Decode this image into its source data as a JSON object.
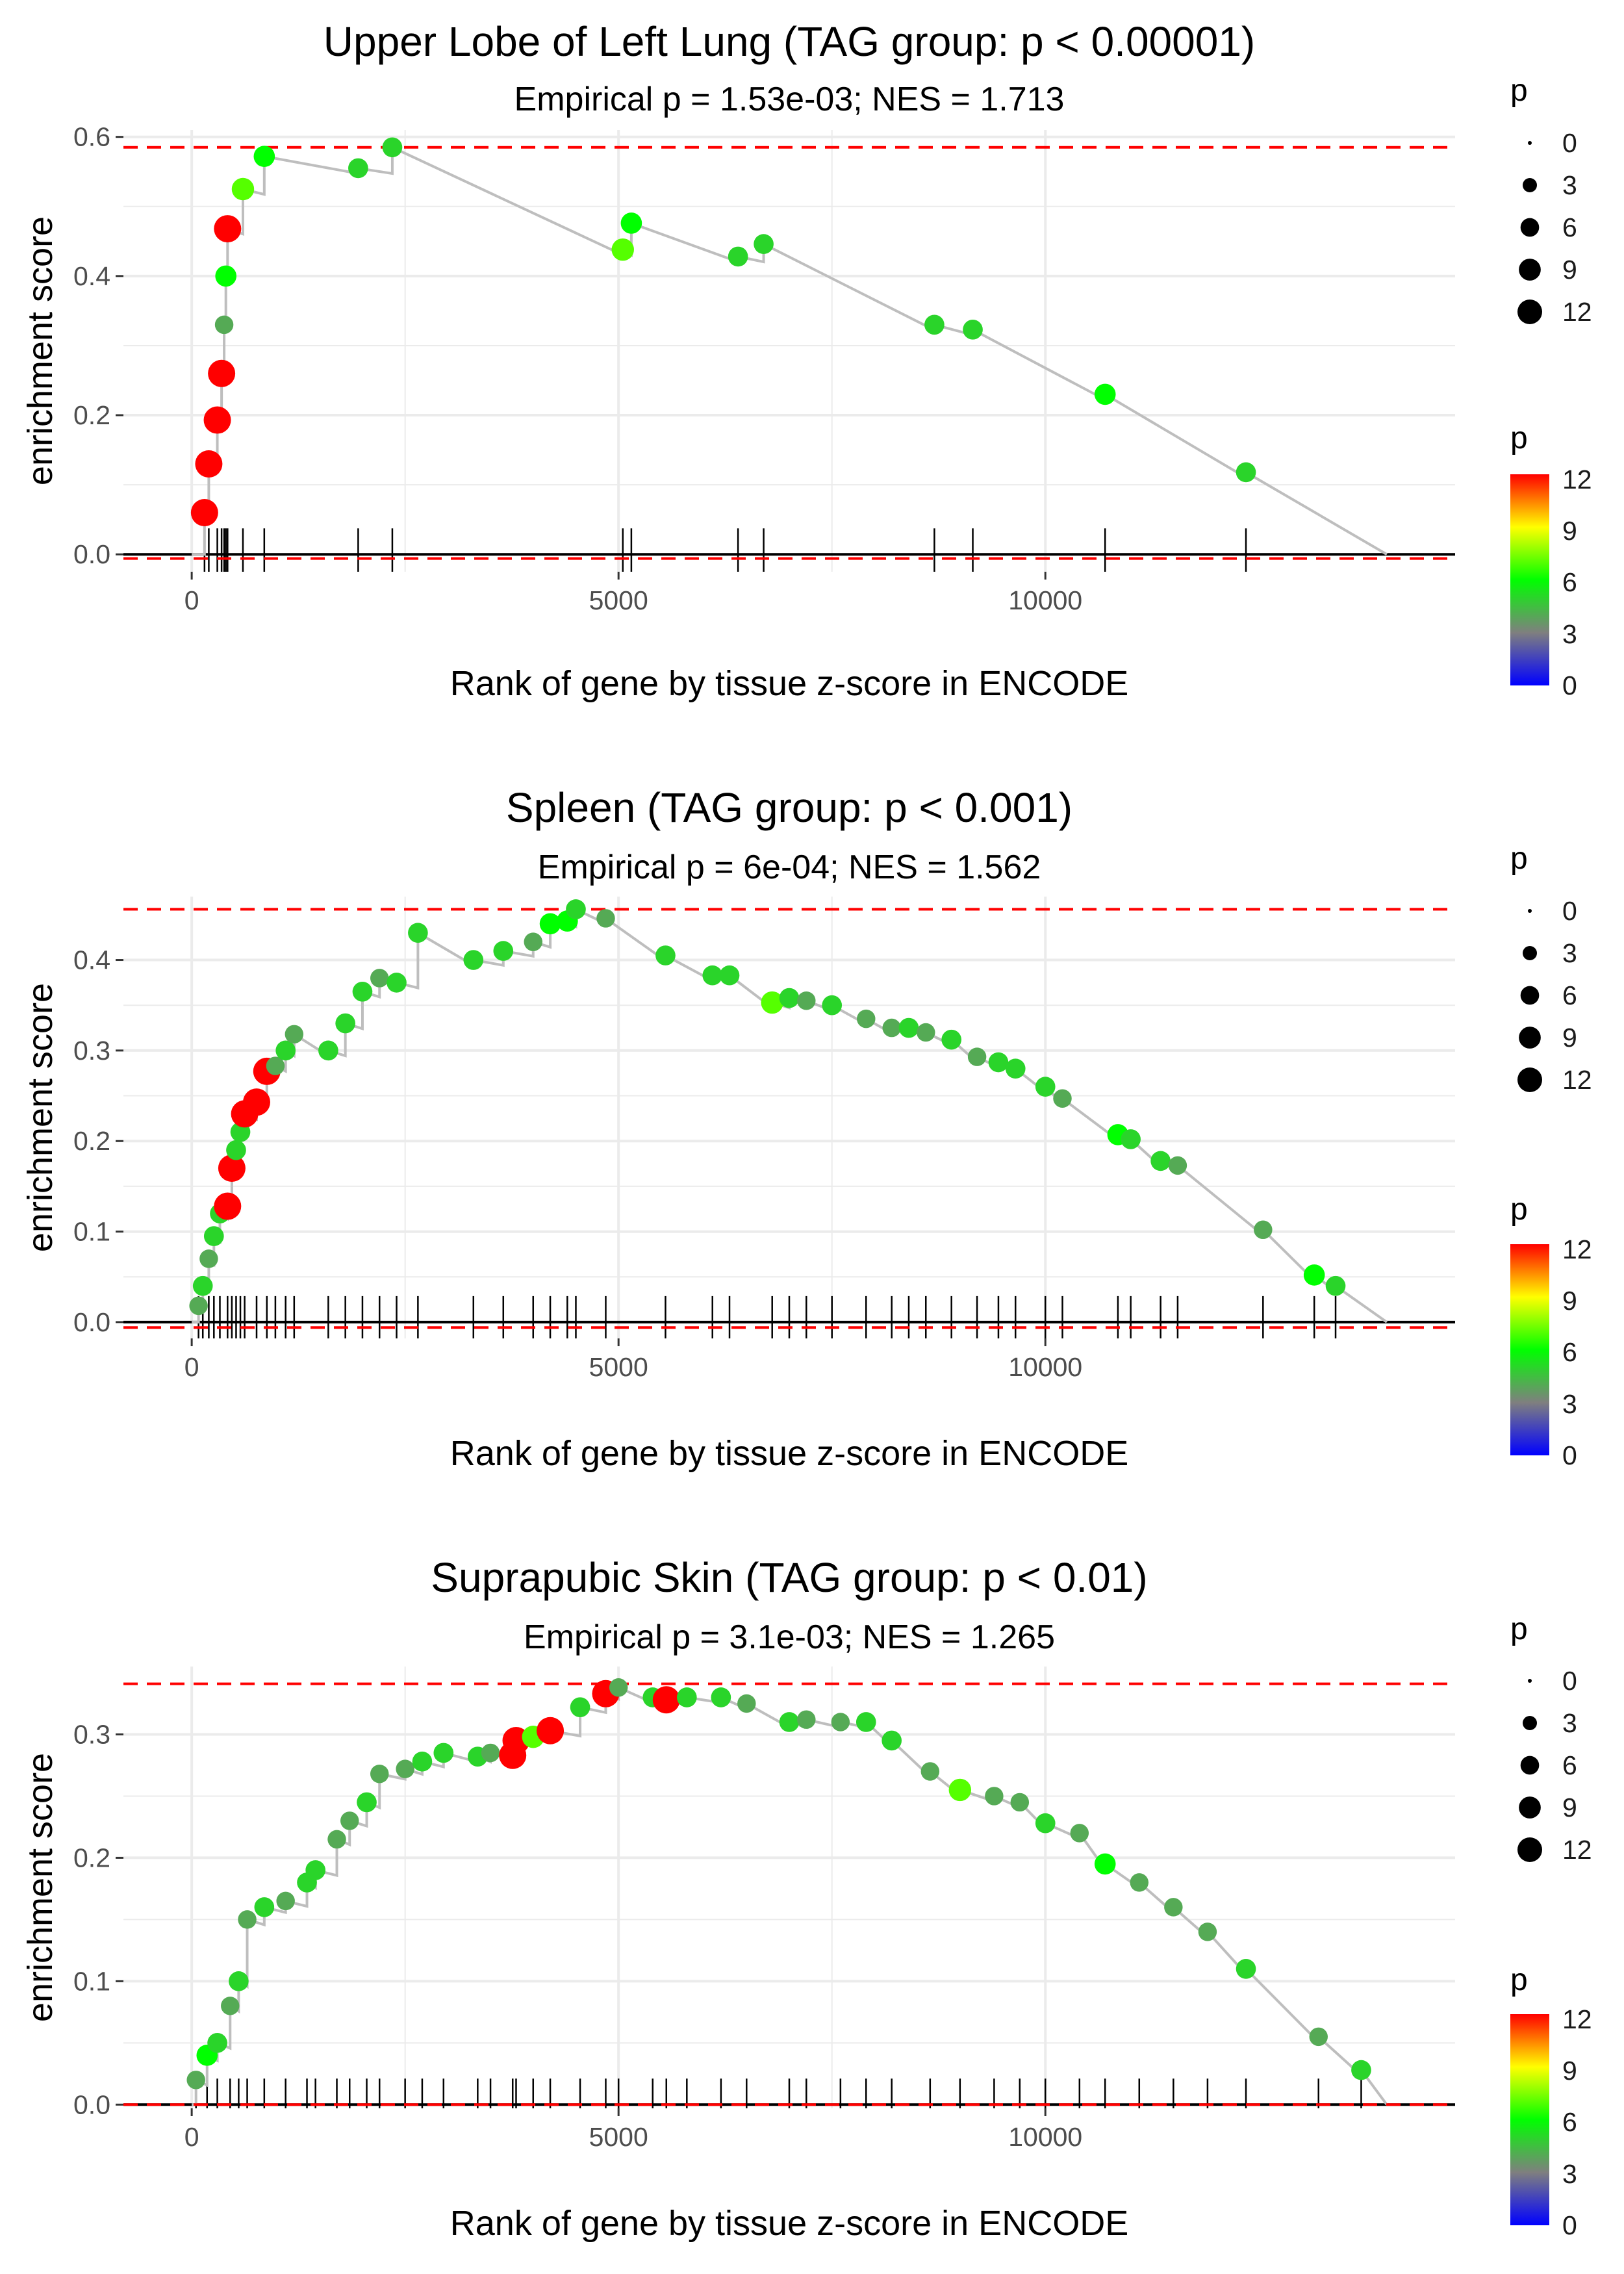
{
  "figure": {
    "colors": {
      "gridline": "#ebebeb",
      "curve": "#bebebe",
      "bound_line": "#ff0000",
      "baseline": "#000000",
      "hit_tick": "#000000",
      "point_gradient": [
        "#0000ff",
        "#7f7f7f",
        "#00ff00",
        "#ffff00",
        "#ff0000"
      ]
    }
  },
  "chart_data": [
    {
      "type": "scatter",
      "title": "Upper Lobe of Left Lung (TAG group: p < 0.00001)",
      "subtitle": "Empirical p = 1.53e-03; NES = 1.713",
      "xlabel": "Rank of gene by tissue z-score in ENCODE",
      "ylabel": "enrichment score",
      "xlim": [
        -800,
        14800
      ],
      "ylim": [
        -0.025,
        0.61
      ],
      "x_ticks": [
        0,
        5000,
        10000
      ],
      "x_tick_labels": [
        "0",
        "5000",
        "10000"
      ],
      "y_ticks": [
        0.0,
        0.2,
        0.4,
        0.6
      ],
      "y_tick_labels": [
        "0.0",
        "0.2",
        "0.4",
        "0.6"
      ],
      "max_es": 0.585,
      "min_es": -0.006,
      "total_genes": 14000,
      "points": [
        {
          "x": 150,
          "y": 0.06,
          "p": 12
        },
        {
          "x": 200,
          "y": 0.13,
          "p": 12
        },
        {
          "x": 300,
          "y": 0.193,
          "p": 12
        },
        {
          "x": 350,
          "y": 0.26,
          "p": 12
        },
        {
          "x": 380,
          "y": 0.33,
          "p": 4
        },
        {
          "x": 400,
          "y": 0.4,
          "p": 6
        },
        {
          "x": 420,
          "y": 0.468,
          "p": 12
        },
        {
          "x": 600,
          "y": 0.525,
          "p": 7
        },
        {
          "x": 850,
          "y": 0.572,
          "p": 6
        },
        {
          "x": 1950,
          "y": 0.555,
          "p": 5
        },
        {
          "x": 2350,
          "y": 0.585,
          "p": 5
        },
        {
          "x": 5050,
          "y": 0.438,
          "p": 7
        },
        {
          "x": 5150,
          "y": 0.476,
          "p": 6
        },
        {
          "x": 6400,
          "y": 0.428,
          "p": 5
        },
        {
          "x": 6700,
          "y": 0.446,
          "p": 5
        },
        {
          "x": 8700,
          "y": 0.33,
          "p": 5
        },
        {
          "x": 9150,
          "y": 0.323,
          "p": 5
        },
        {
          "x": 10700,
          "y": 0.23,
          "p": 6
        },
        {
          "x": 12350,
          "y": 0.118,
          "p": 5
        }
      ],
      "size_legend": {
        "title": "p",
        "values": [
          0,
          3,
          6,
          9,
          12
        ]
      },
      "color_legend": {
        "title": "p",
        "labels": [
          "12",
          "9",
          "6",
          "3",
          "0"
        ]
      }
    },
    {
      "type": "scatter",
      "title": "Spleen (TAG group: p < 0.001)",
      "subtitle": "Empirical p = 6e-04; NES = 1.562",
      "xlabel": "Rank of gene by tissue z-score in ENCODE",
      "ylabel": "enrichment score",
      "xlim": [
        -800,
        14800
      ],
      "ylim": [
        -0.018,
        0.47
      ],
      "x_ticks": [
        0,
        5000,
        10000
      ],
      "x_tick_labels": [
        "0",
        "5000",
        "10000"
      ],
      "y_ticks": [
        0.0,
        0.1,
        0.2,
        0.3,
        0.4
      ],
      "y_tick_labels": [
        "0.0",
        "0.1",
        "0.2",
        "0.3",
        "0.4"
      ],
      "max_es": 0.456,
      "min_es": -0.006,
      "total_genes": 14000,
      "points": [
        {
          "x": 80,
          "y": 0.018,
          "p": 4
        },
        {
          "x": 130,
          "y": 0.04,
          "p": 5
        },
        {
          "x": 200,
          "y": 0.07,
          "p": 4
        },
        {
          "x": 260,
          "y": 0.095,
          "p": 5
        },
        {
          "x": 330,
          "y": 0.12,
          "p": 5
        },
        {
          "x": 420,
          "y": 0.128,
          "p": 12
        },
        {
          "x": 470,
          "y": 0.17,
          "p": 12
        },
        {
          "x": 520,
          "y": 0.19,
          "p": 5
        },
        {
          "x": 570,
          "y": 0.21,
          "p": 5
        },
        {
          "x": 620,
          "y": 0.23,
          "p": 12
        },
        {
          "x": 760,
          "y": 0.243,
          "p": 12
        },
        {
          "x": 880,
          "y": 0.277,
          "p": 12
        },
        {
          "x": 980,
          "y": 0.283,
          "p": 4
        },
        {
          "x": 1100,
          "y": 0.3,
          "p": 5
        },
        {
          "x": 1200,
          "y": 0.318,
          "p": 4
        },
        {
          "x": 1600,
          "y": 0.3,
          "p": 5
        },
        {
          "x": 1800,
          "y": 0.33,
          "p": 5
        },
        {
          "x": 2000,
          "y": 0.365,
          "p": 5
        },
        {
          "x": 2200,
          "y": 0.38,
          "p": 4
        },
        {
          "x": 2400,
          "y": 0.375,
          "p": 5
        },
        {
          "x": 2650,
          "y": 0.43,
          "p": 5
        },
        {
          "x": 3300,
          "y": 0.4,
          "p": 5
        },
        {
          "x": 3650,
          "y": 0.41,
          "p": 5
        },
        {
          "x": 4000,
          "y": 0.42,
          "p": 4
        },
        {
          "x": 4200,
          "y": 0.44,
          "p": 6
        },
        {
          "x": 4400,
          "y": 0.443,
          "p": 6
        },
        {
          "x": 4500,
          "y": 0.456,
          "p": 5
        },
        {
          "x": 4850,
          "y": 0.446,
          "p": 4
        },
        {
          "x": 5550,
          "y": 0.405,
          "p": 5
        },
        {
          "x": 6100,
          "y": 0.383,
          "p": 5
        },
        {
          "x": 6300,
          "y": 0.383,
          "p": 5
        },
        {
          "x": 6800,
          "y": 0.353,
          "p": 7
        },
        {
          "x": 7000,
          "y": 0.358,
          "p": 5
        },
        {
          "x": 7200,
          "y": 0.355,
          "p": 4
        },
        {
          "x": 7500,
          "y": 0.35,
          "p": 5
        },
        {
          "x": 7900,
          "y": 0.335,
          "p": 4
        },
        {
          "x": 8200,
          "y": 0.325,
          "p": 4
        },
        {
          "x": 8400,
          "y": 0.325,
          "p": 5
        },
        {
          "x": 8600,
          "y": 0.32,
          "p": 4
        },
        {
          "x": 8900,
          "y": 0.312,
          "p": 5
        },
        {
          "x": 9200,
          "y": 0.293,
          "p": 4
        },
        {
          "x": 9450,
          "y": 0.287,
          "p": 5
        },
        {
          "x": 9650,
          "y": 0.28,
          "p": 5
        },
        {
          "x": 10000,
          "y": 0.26,
          "p": 5
        },
        {
          "x": 10200,
          "y": 0.247,
          "p": 4
        },
        {
          "x": 10850,
          "y": 0.207,
          "p": 6
        },
        {
          "x": 11000,
          "y": 0.202,
          "p": 5
        },
        {
          "x": 11350,
          "y": 0.178,
          "p": 5
        },
        {
          "x": 11550,
          "y": 0.173,
          "p": 4
        },
        {
          "x": 12550,
          "y": 0.102,
          "p": 4
        },
        {
          "x": 13150,
          "y": 0.052,
          "p": 6
        },
        {
          "x": 13400,
          "y": 0.04,
          "p": 5
        }
      ],
      "size_legend": {
        "title": "p",
        "values": [
          0,
          3,
          6,
          9,
          12
        ]
      },
      "color_legend": {
        "title": "p",
        "labels": [
          "12",
          "9",
          "6",
          "3",
          "0"
        ]
      }
    },
    {
      "type": "scatter",
      "title": "Suprapubic Skin (TAG group: p < 0.01)",
      "subtitle": "Empirical p = 3.1e-03; NES = 1.265",
      "xlabel": "Rank of gene by tissue z-score in ENCODE",
      "ylabel": "enrichment score",
      "xlim": [
        -800,
        14800
      ],
      "ylim": [
        -0.003,
        0.355
      ],
      "x_ticks": [
        0,
        5000,
        10000
      ],
      "x_tick_labels": [
        "0",
        "5000",
        "10000"
      ],
      "y_ticks": [
        0.0,
        0.1,
        0.2,
        0.3
      ],
      "y_tick_labels": [
        "0.0",
        "0.1",
        "0.2",
        "0.3"
      ],
      "max_es": 0.341,
      "min_es": 0.0,
      "total_genes": 14000,
      "points": [
        {
          "x": 50,
          "y": 0.02,
          "p": 4
        },
        {
          "x": 180,
          "y": 0.04,
          "p": 6
        },
        {
          "x": 300,
          "y": 0.05,
          "p": 5
        },
        {
          "x": 450,
          "y": 0.08,
          "p": 4
        },
        {
          "x": 550,
          "y": 0.1,
          "p": 5
        },
        {
          "x": 650,
          "y": 0.15,
          "p": 4
        },
        {
          "x": 850,
          "y": 0.16,
          "p": 5
        },
        {
          "x": 1100,
          "y": 0.165,
          "p": 4
        },
        {
          "x": 1350,
          "y": 0.18,
          "p": 5
        },
        {
          "x": 1450,
          "y": 0.19,
          "p": 5
        },
        {
          "x": 1700,
          "y": 0.215,
          "p": 4
        },
        {
          "x": 1850,
          "y": 0.23,
          "p": 4
        },
        {
          "x": 2050,
          "y": 0.245,
          "p": 5
        },
        {
          "x": 2200,
          "y": 0.268,
          "p": 4
        },
        {
          "x": 2500,
          "y": 0.272,
          "p": 4
        },
        {
          "x": 2700,
          "y": 0.278,
          "p": 5
        },
        {
          "x": 2950,
          "y": 0.285,
          "p": 5
        },
        {
          "x": 3350,
          "y": 0.282,
          "p": 5
        },
        {
          "x": 3500,
          "y": 0.285,
          "p": 4
        },
        {
          "x": 3760,
          "y": 0.283,
          "p": 12
        },
        {
          "x": 3800,
          "y": 0.295,
          "p": 12
        },
        {
          "x": 4000,
          "y": 0.298,
          "p": 7
        },
        {
          "x": 4200,
          "y": 0.303,
          "p": 12
        },
        {
          "x": 4550,
          "y": 0.322,
          "p": 5
        },
        {
          "x": 4850,
          "y": 0.333,
          "p": 12
        },
        {
          "x": 5000,
          "y": 0.338,
          "p": 4
        },
        {
          "x": 5400,
          "y": 0.33,
          "p": 5
        },
        {
          "x": 5560,
          "y": 0.328,
          "p": 12
        },
        {
          "x": 5800,
          "y": 0.33,
          "p": 5
        },
        {
          "x": 6200,
          "y": 0.33,
          "p": 5
        },
        {
          "x": 6500,
          "y": 0.325,
          "p": 4
        },
        {
          "x": 7000,
          "y": 0.31,
          "p": 5
        },
        {
          "x": 7200,
          "y": 0.312,
          "p": 4
        },
        {
          "x": 7600,
          "y": 0.31,
          "p": 4
        },
        {
          "x": 7900,
          "y": 0.31,
          "p": 5
        },
        {
          "x": 8200,
          "y": 0.295,
          "p": 5
        },
        {
          "x": 8650,
          "y": 0.27,
          "p": 4
        },
        {
          "x": 9000,
          "y": 0.255,
          "p": 7
        },
        {
          "x": 9400,
          "y": 0.25,
          "p": 4
        },
        {
          "x": 9700,
          "y": 0.245,
          "p": 4
        },
        {
          "x": 10000,
          "y": 0.228,
          "p": 5
        },
        {
          "x": 10400,
          "y": 0.22,
          "p": 4
        },
        {
          "x": 10700,
          "y": 0.195,
          "p": 6
        },
        {
          "x": 11100,
          "y": 0.18,
          "p": 4
        },
        {
          "x": 11500,
          "y": 0.16,
          "p": 4
        },
        {
          "x": 11900,
          "y": 0.14,
          "p": 4
        },
        {
          "x": 12350,
          "y": 0.11,
          "p": 5
        },
        {
          "x": 13200,
          "y": 0.055,
          "p": 4
        },
        {
          "x": 13700,
          "y": 0.028,
          "p": 5
        }
      ],
      "size_legend": {
        "title": "p",
        "values": [
          0,
          3,
          6,
          9,
          12
        ]
      },
      "color_legend": {
        "title": "p",
        "labels": [
          "12",
          "9",
          "6",
          "3",
          "0"
        ]
      }
    }
  ]
}
